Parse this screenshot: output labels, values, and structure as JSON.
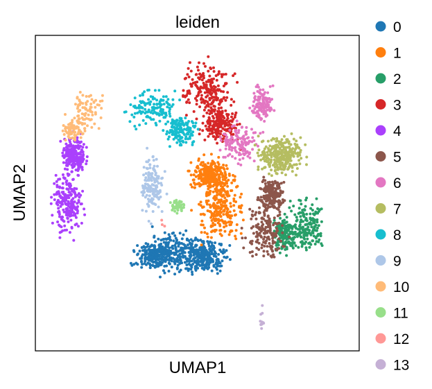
{
  "chart_data": {
    "type": "scatter",
    "title": "leiden",
    "xlabel": "UMAP1",
    "ylabel": "UMAP2",
    "xlim": [
      0,
      100
    ],
    "ylim": [
      0,
      100
    ],
    "grid": false,
    "ticks": "none",
    "legend_placement": "right, outside plot",
    "series": [
      {
        "name": "0",
        "color": "#1f77b4",
        "n": 620,
        "centers": [
          [
            44,
            31,
            10,
            6
          ],
          [
            38,
            30,
            6,
            4
          ],
          [
            52,
            30,
            6,
            4
          ]
        ]
      },
      {
        "name": "1",
        "color": "#ff7f0e",
        "n": 520,
        "centers": [
          [
            57,
            46,
            6,
            9
          ],
          [
            54,
            56,
            5,
            4
          ]
        ]
      },
      {
        "name": "2",
        "color": "#279e68",
        "n": 340,
        "centers": [
          [
            84,
            40,
            5,
            7
          ],
          [
            77,
            37,
            3,
            5
          ]
        ]
      },
      {
        "name": "3",
        "color": "#d62728",
        "n": 420,
        "centers": [
          [
            53,
            83,
            6,
            7
          ],
          [
            57,
            72,
            5,
            5
          ]
        ]
      },
      {
        "name": "4",
        "color": "#aa40fc",
        "n": 430,
        "centers": [
          [
            10,
            47,
            4,
            8
          ],
          [
            12,
            62,
            3,
            5
          ]
        ]
      },
      {
        "name": "5",
        "color": "#8c564b",
        "n": 360,
        "centers": [
          [
            71,
            38,
            5,
            8
          ],
          [
            73,
            50,
            3,
            4
          ]
        ]
      },
      {
        "name": "6",
        "color": "#e377c2",
        "n": 260,
        "centers": [
          [
            63,
            66,
            5,
            5
          ],
          [
            70,
            78,
            3,
            5
          ]
        ]
      },
      {
        "name": "7",
        "color": "#b5bd61",
        "n": 300,
        "centers": [
          [
            76,
            62,
            6,
            5
          ]
        ]
      },
      {
        "name": "8",
        "color": "#17becf",
        "n": 280,
        "centers": [
          [
            37,
            77,
            7,
            5
          ],
          [
            45,
            70,
            4,
            4
          ]
        ]
      },
      {
        "name": "9",
        "color": "#aec7e8",
        "n": 150,
        "centers": [
          [
            36,
            52,
            3,
            8
          ]
        ]
      },
      {
        "name": "10",
        "color": "#ffbb78",
        "n": 150,
        "centers": [
          [
            16,
            76,
            5,
            6
          ],
          [
            12,
            70,
            3,
            3
          ]
        ]
      },
      {
        "name": "11",
        "color": "#98df8a",
        "n": 40,
        "centers": [
          [
            44,
            46,
            2,
            2
          ]
        ]
      },
      {
        "name": "12",
        "color": "#ff9896",
        "n": 3,
        "centers": [
          [
            40,
            40,
            2,
            2
          ]
        ]
      },
      {
        "name": "13",
        "color": "#c5b0d5",
        "n": 12,
        "centers": [
          [
            70,
            10,
            0.6,
            4
          ]
        ]
      }
    ]
  }
}
